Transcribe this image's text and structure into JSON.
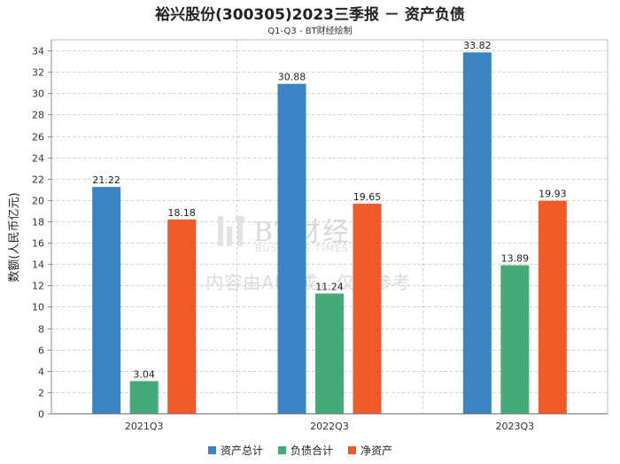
{
  "chart_data": {
    "type": "bar",
    "title": "裕兴股份(300305)2023三季报 － 资产负债",
    "subtitle": "Q1-Q3 - BT财经绘制",
    "ylabel": "数额(人民币亿元)",
    "xlabel": "",
    "ylim": [
      0,
      35
    ],
    "yticks": [
      0,
      2,
      4,
      6,
      8,
      10,
      12,
      14,
      16,
      18,
      20,
      22,
      24,
      26,
      28,
      30,
      32,
      34
    ],
    "grid": true,
    "legend_position": "bottom",
    "categories": [
      "2021Q3",
      "2022Q3",
      "2023Q3"
    ],
    "series": [
      {
        "name": "资产总计",
        "color": "#3a84c4",
        "values": [
          21.22,
          30.88,
          33.82
        ],
        "labels": [
          "21.22",
          "30.88",
          "33.82"
        ]
      },
      {
        "name": "负债合计",
        "color": "#45a978",
        "values": [
          3.04,
          11.24,
          13.89
        ],
        "labels": [
          "3.04",
          "11.24",
          "13.89"
        ]
      },
      {
        "name": "净资产",
        "color": "#f05a28",
        "values": [
          18.18,
          19.65,
          19.93
        ],
        "labels": [
          "18.18",
          "19.65",
          "19.93"
        ]
      }
    ]
  },
  "watermark": {
    "brand": "BT财经",
    "brand_en": "BUSINESS TIMES",
    "note": "内容由AI生成，仅供参考"
  }
}
